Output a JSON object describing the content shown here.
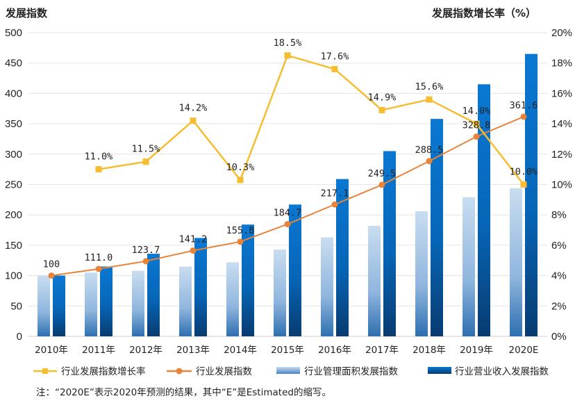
{
  "chart_data": {
    "type": "bar+line",
    "left_axis_title": "发展指数",
    "right_axis_title": "发展指数增长率（%）",
    "categories": [
      "2010年",
      "2011年",
      "2012年",
      "2013年",
      "2014年",
      "2015年",
      "2016年",
      "2017年",
      "2018年",
      "2019年",
      "2020E"
    ],
    "left_ylim": [
      0,
      500
    ],
    "left_ticks": [
      "0",
      "50",
      "100",
      "150",
      "200",
      "250",
      "300",
      "350",
      "400",
      "450",
      "500"
    ],
    "left_tick_values": [
      0,
      50,
      100,
      150,
      200,
      250,
      300,
      350,
      400,
      450,
      500
    ],
    "right_ylim": [
      0,
      20
    ],
    "right_ticks": [
      "0%",
      "2%",
      "4%",
      "6%",
      "8%",
      "10%",
      "12%",
      "14%",
      "16%",
      "18%",
      "20%"
    ],
    "right_tick_values": [
      0,
      2,
      4,
      6,
      8,
      10,
      12,
      14,
      16,
      18,
      20
    ],
    "grid": true,
    "legend_position": "bottom",
    "series": [
      {
        "name": "行业发展指数增长率",
        "type": "line",
        "axis": "right",
        "color": "#F5BD2F",
        "marker": "square",
        "values": [
          null,
          11.0,
          11.5,
          14.2,
          10.3,
          18.5,
          17.6,
          14.9,
          15.6,
          14.0,
          10.0
        ],
        "labels": [
          null,
          "11.0%",
          "11.5%",
          "14.2%",
          "10.3%",
          "18.5%",
          "17.6%",
          "14.9%",
          "15.6%",
          "14.0%",
          "10.0%"
        ]
      },
      {
        "name": "行业发展指数",
        "type": "line",
        "axis": "left",
        "color": "#E8833A",
        "marker": "circle",
        "values": [
          100,
          111.0,
          123.7,
          141.2,
          155.8,
          184.7,
          217.1,
          249.5,
          288.5,
          328.8,
          361.6
        ],
        "labels": [
          "100",
          "111.0",
          "123.7",
          "141.2",
          "155.8",
          "184.7",
          "217.1",
          "249.5",
          "288.5",
          "328.8",
          "361.6"
        ]
      },
      {
        "name": "行业管理面积发展指数",
        "type": "bar",
        "axis": "left",
        "color": "#A9C8E8",
        "values": [
          100,
          105,
          108,
          115,
          122,
          143,
          163,
          182,
          206,
          229,
          244
        ]
      },
      {
        "name": "行业营业收入发展指数",
        "type": "bar",
        "axis": "left",
        "color": "#0B6FC2",
        "values": [
          100,
          115,
          136,
          162,
          184,
          217,
          259,
          305,
          358,
          415,
          465
        ]
      }
    ]
  },
  "note": "注：“2020E”表示2020年预测的结果，其中“E”是Estimated的缩写。"
}
